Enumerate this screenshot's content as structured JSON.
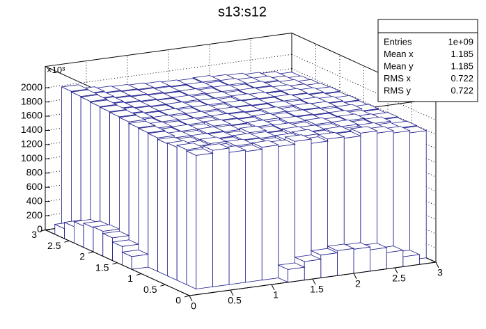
{
  "chart_data": {
    "type": "lego",
    "title": "s13:s12",
    "xlim": [
      0,
      3
    ],
    "ylim": [
      0,
      3
    ],
    "zlim": [
      0,
      2300
    ],
    "xticks": [
      0,
      0.5,
      1,
      1.5,
      2,
      2.5,
      3
    ],
    "yticks": [
      0,
      0.5,
      1,
      1.5,
      2,
      2.5,
      3
    ],
    "zticks": [
      0,
      200,
      400,
      600,
      800,
      1000,
      1200,
      1400,
      1600,
      1800,
      2000
    ],
    "z_exponent": "×10³",
    "line_color": "#1a1a8c",
    "fill": "#ffffff",
    "grid": true,
    "values": [
      [
        0,
        0,
        0,
        0,
        0,
        0,
        180,
        260,
        320,
        350,
        340,
        300,
        230,
        140,
        0
      ],
      [
        0,
        1880,
        1920,
        1860,
        1840,
        1870,
        1850,
        1890,
        1830,
        1860,
        1840,
        1880,
        1850,
        1820,
        1790
      ],
      [
        0,
        1900,
        1850,
        1830,
        1860,
        1840,
        1820,
        1850,
        1870,
        1830,
        1850,
        1820,
        1840,
        1810,
        1800
      ],
      [
        0,
        1870,
        1840,
        1860,
        1830,
        1850,
        1840,
        1820,
        1850,
        1840,
        1830,
        1850,
        1820,
        1830,
        1790
      ],
      [
        0,
        1860,
        1830,
        1850,
        1840,
        1820,
        1860,
        1830,
        1840,
        1820,
        1850,
        1830,
        1840,
        1810,
        1800
      ],
      [
        0,
        1880,
        1850,
        1830,
        1850,
        1840,
        1830,
        1850,
        1820,
        1840,
        1830,
        1820,
        1830,
        1800,
        1780
      ],
      [
        180,
        1890,
        1840,
        1850,
        1830,
        1860,
        1840,
        1830,
        1850,
        1830,
        1840,
        1830,
        1810,
        1820,
        1790
      ],
      [
        260,
        1900,
        1860,
        1840,
        1850,
        1830,
        1850,
        1840,
        1830,
        1850,
        1820,
        1840,
        1830,
        1800,
        1780
      ],
      [
        320,
        1920,
        1850,
        1860,
        1840,
        1850,
        1830,
        1850,
        1840,
        1830,
        1840,
        1820,
        1830,
        1810,
        1790
      ],
      [
        350,
        1930,
        1870,
        1850,
        1860,
        1840,
        1850,
        1830,
        1850,
        1840,
        1830,
        1840,
        1820,
        1800,
        1780
      ],
      [
        340,
        1940,
        1880,
        1860,
        1850,
        1860,
        1840,
        1850,
        1830,
        1850,
        1840,
        1820,
        1830,
        1810,
        1790
      ],
      [
        300,
        1950,
        1890,
        1870,
        1860,
        1850,
        1860,
        1840,
        1850,
        1830,
        1840,
        1830,
        1820,
        1800,
        1780
      ],
      [
        230,
        1960,
        1900,
        1880,
        1870,
        1860,
        1850,
        1860,
        1840,
        1850,
        1830,
        1840,
        1810,
        1800,
        1770
      ],
      [
        140,
        1970,
        1910,
        1890,
        1880,
        1870,
        1860,
        1850,
        1860,
        1840,
        1850,
        1830,
        1820,
        1790,
        1760
      ],
      [
        0,
        1980,
        1920,
        1900,
        1890,
        1880,
        1870,
        1860,
        1850,
        1860,
        1840,
        1830,
        1810,
        1790,
        1750
      ]
    ],
    "stats": {
      "rows": [
        [
          "Entries",
          "1e+09"
        ],
        [
          "Mean x",
          "1.185"
        ],
        [
          "Mean y",
          "1.185"
        ],
        [
          "RMS x",
          "0.722"
        ],
        [
          "RMS y",
          "0.722"
        ]
      ]
    }
  }
}
